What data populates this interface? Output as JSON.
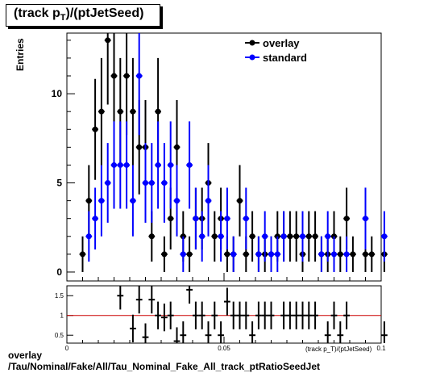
{
  "chart_data": {
    "type": "scatter",
    "title_main": "(track p",
    "title_sub": "T",
    "title_end": ")/(ptJetSeed)",
    "ylabel": "Entries",
    "xlabel": "(track p_T)/(ptJetSeed)",
    "xlim": [
      0,
      0.1
    ],
    "ylim": [
      -0.5,
      13.4
    ],
    "x_ticks": [
      "0",
      "0.05",
      "0.1"
    ],
    "y_ticks": [
      "0",
      "5",
      "10"
    ],
    "series": [
      {
        "name": "overlay",
        "color": "#000000",
        "x": [
          0.005,
          0.007,
          0.009,
          0.011,
          0.013,
          0.015,
          0.017,
          0.019,
          0.021,
          0.023,
          0.025,
          0.027,
          0.029,
          0.031,
          0.033,
          0.035,
          0.037,
          0.039,
          0.041,
          0.043,
          0.045,
          0.047,
          0.049,
          0.051,
          0.053,
          0.055,
          0.057,
          0.059,
          0.061,
          0.063,
          0.065,
          0.067,
          0.069,
          0.071,
          0.073,
          0.075,
          0.077,
          0.079,
          0.081,
          0.083,
          0.085,
          0.087,
          0.089,
          0.091,
          0.095,
          0.097,
          0.101
        ],
        "values": [
          1,
          4,
          8,
          9,
          13,
          11,
          9,
          11,
          9,
          7,
          7,
          2,
          9,
          1,
          3,
          7,
          2,
          1,
          3,
          3,
          5,
          2,
          3,
          1,
          1,
          4,
          1,
          2,
          1,
          1,
          1,
          2,
          2,
          2,
          2,
          1,
          2,
          2,
          1,
          1,
          2,
          1,
          3,
          1,
          1,
          1,
          1
        ]
      },
      {
        "name": "standard",
        "color": "#0000ff",
        "x": [
          0.007,
          0.009,
          0.011,
          0.013,
          0.015,
          0.017,
          0.019,
          0.021,
          0.023,
          0.025,
          0.027,
          0.029,
          0.031,
          0.033,
          0.035,
          0.037,
          0.039,
          0.041,
          0.043,
          0.045,
          0.049,
          0.051,
          0.053,
          0.057,
          0.061,
          0.063,
          0.065,
          0.067,
          0.069,
          0.075,
          0.081,
          0.083,
          0.085,
          0.089,
          0.095,
          0.101
        ],
        "values": [
          2,
          3,
          4,
          5,
          6,
          6,
          6,
          4,
          11,
          5,
          5,
          6,
          5,
          6,
          4,
          1,
          6,
          3,
          2,
          4,
          2,
          3,
          1,
          3,
          1,
          2,
          1,
          1,
          2,
          2,
          1,
          2,
          1,
          1,
          3,
          2
        ]
      }
    ],
    "ratio": {
      "ylim": [
        0.3,
        1.75
      ],
      "y_ticks": [
        "0.5",
        "1",
        "1.5"
      ],
      "reference": 1.0,
      "reference_color": "#cc0000",
      "x": [
        0.017,
        0.021,
        0.023,
        0.025,
        0.027,
        0.029,
        0.031,
        0.033,
        0.035,
        0.037,
        0.039,
        0.041,
        0.043,
        0.045,
        0.047,
        0.049,
        0.051,
        0.053,
        0.055,
        0.057,
        0.059,
        0.061,
        0.063,
        0.065,
        0.069,
        0.071,
        0.073,
        0.075,
        0.077,
        0.079,
        0.083,
        0.085,
        0.087,
        0.089,
        0.101
      ],
      "values": [
        1.5,
        0.67,
        1.4,
        0.45,
        1.4,
        1.0,
        0.95,
        1.0,
        0.35,
        0.5,
        1.65,
        1.0,
        1.0,
        0.5,
        1.0,
        0.5,
        1.35,
        1.0,
        1.0,
        1.0,
        0.5,
        1.0,
        1.0,
        1.0,
        1.0,
        1.0,
        1.0,
        1.0,
        1.0,
        1.0,
        0.5,
        1.0,
        0.5,
        1.0,
        0.5
      ]
    }
  },
  "footer": {
    "line1": "overlay",
    "line2": "/Tau/Nominal/Fake/All/Tau_Nominal_Fake_All_track_ptRatioSeedJet"
  }
}
